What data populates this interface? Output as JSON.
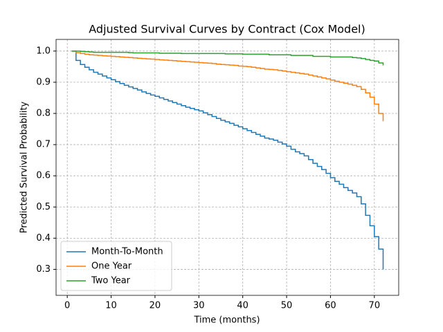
{
  "chart_data": {
    "type": "step",
    "title": "Adjusted Survival Curves by Contract (Cox Model)",
    "x_label": "Time (months)",
    "y_label": "Predicted Survival Probability",
    "x": [
      1,
      2,
      3,
      4,
      5,
      6,
      7,
      8,
      9,
      10,
      11,
      12,
      13,
      14,
      15,
      16,
      17,
      18,
      19,
      20,
      21,
      22,
      23,
      24,
      25,
      26,
      27,
      28,
      29,
      30,
      31,
      32,
      33,
      34,
      35,
      36,
      37,
      38,
      39,
      40,
      41,
      42,
      43,
      44,
      45,
      46,
      47,
      48,
      49,
      50,
      51,
      52,
      53,
      54,
      55,
      56,
      57,
      58,
      59,
      60,
      61,
      62,
      63,
      64,
      65,
      66,
      67,
      68,
      69,
      70,
      71,
      72
    ],
    "series": [
      {
        "name": "Month-To-Month",
        "color": "#1f77b4",
        "values": [
          1.0,
          0.97,
          0.957,
          0.948,
          0.94,
          0.932,
          0.926,
          0.92,
          0.914,
          0.908,
          0.902,
          0.896,
          0.89,
          0.885,
          0.88,
          0.875,
          0.869,
          0.864,
          0.859,
          0.855,
          0.85,
          0.845,
          0.84,
          0.835,
          0.83,
          0.825,
          0.82,
          0.816,
          0.812,
          0.808,
          0.802,
          0.796,
          0.79,
          0.784,
          0.778,
          0.773,
          0.768,
          0.762,
          0.757,
          0.751,
          0.745,
          0.739,
          0.733,
          0.727,
          0.721,
          0.718,
          0.714,
          0.708,
          0.702,
          0.695,
          0.685,
          0.677,
          0.671,
          0.664,
          0.652,
          0.64,
          0.63,
          0.62,
          0.608,
          0.594,
          0.582,
          0.573,
          0.562,
          0.553,
          0.545,
          0.533,
          0.51,
          0.473,
          0.44,
          0.405,
          0.365,
          0.3
        ]
      },
      {
        "name": "One Year",
        "color": "#ff7f0e",
        "values": [
          1.0,
          0.995,
          0.992,
          0.99,
          0.988,
          0.987,
          0.986,
          0.985,
          0.984,
          0.983,
          0.982,
          0.981,
          0.98,
          0.979,
          0.978,
          0.977,
          0.976,
          0.975,
          0.974,
          0.973,
          0.972,
          0.971,
          0.97,
          0.969,
          0.968,
          0.967,
          0.966,
          0.965,
          0.964,
          0.963,
          0.962,
          0.961,
          0.96,
          0.958,
          0.957,
          0.956,
          0.955,
          0.954,
          0.952,
          0.951,
          0.95,
          0.948,
          0.946,
          0.944,
          0.942,
          0.941,
          0.94,
          0.938,
          0.936,
          0.934,
          0.932,
          0.93,
          0.928,
          0.926,
          0.923,
          0.92,
          0.917,
          0.914,
          0.911,
          0.907,
          0.903,
          0.9,
          0.897,
          0.894,
          0.89,
          0.886,
          0.877,
          0.866,
          0.852,
          0.83,
          0.8,
          0.775
        ]
      },
      {
        "name": "Two Year",
        "color": "#2ca02c",
        "values": [
          1.0,
          1.0,
          0.999,
          0.998,
          0.997,
          0.996,
          0.996,
          0.996,
          0.996,
          0.996,
          0.996,
          0.996,
          0.996,
          0.995,
          0.994,
          0.994,
          0.994,
          0.994,
          0.994,
          0.994,
          0.993,
          0.993,
          0.993,
          0.993,
          0.993,
          0.992,
          0.992,
          0.992,
          0.992,
          0.992,
          0.992,
          0.992,
          0.992,
          0.992,
          0.992,
          0.991,
          0.991,
          0.991,
          0.991,
          0.99,
          0.99,
          0.99,
          0.99,
          0.99,
          0.99,
          0.988,
          0.988,
          0.988,
          0.988,
          0.988,
          0.986,
          0.986,
          0.986,
          0.986,
          0.986,
          0.983,
          0.983,
          0.983,
          0.983,
          0.981,
          0.981,
          0.981,
          0.981,
          0.981,
          0.979,
          0.978,
          0.976,
          0.973,
          0.97,
          0.968,
          0.962,
          0.954
        ]
      }
    ],
    "xlim": [
      -2.55,
      75.55
    ],
    "xticks": [
      0,
      10,
      20,
      30,
      40,
      50,
      60,
      70
    ],
    "ylim": [
      0.2167,
      1.0373
    ],
    "yticks": [
      0.3,
      0.4,
      0.5,
      0.6,
      0.7,
      0.8,
      0.9,
      {
        "value": 1,
        "label": "1.0"
      }
    ],
    "grid": true,
    "legend": "lower left"
  }
}
